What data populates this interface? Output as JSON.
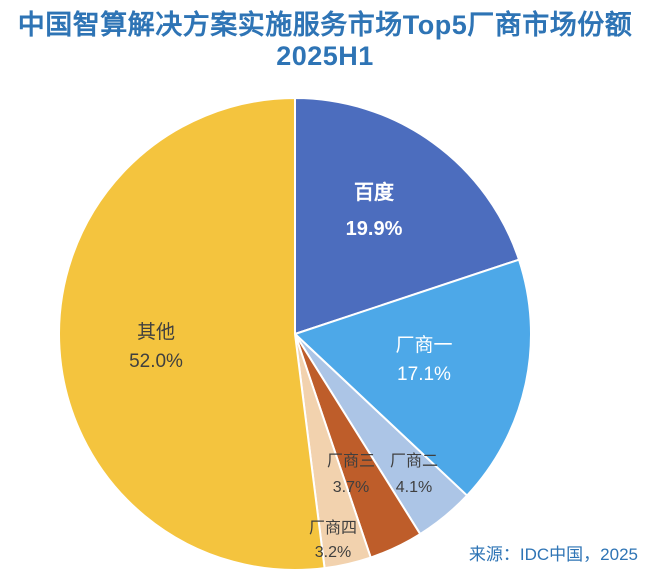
{
  "page": {
    "background": "#FFFFFF"
  },
  "header": {
    "title_line1": "中国智算解决方案实施服务市场Top5厂商市场份额",
    "title_line2": "2025H1",
    "color": "#2E74B5"
  },
  "source": {
    "text": "来源：IDC中国，2025",
    "color": "#2E74B5"
  },
  "chart_data": {
    "type": "pie",
    "title": "中国智算解决方案实施服务市场Top5厂商市场份额 2025H1",
    "start_angle_deg": 0,
    "direction": "clockwise",
    "separator_color": "#FFFFFF",
    "slices": [
      {
        "id": "baidu",
        "label": "百度",
        "value": 19.9,
        "pct": "19.9%",
        "color": "#4C6DBE",
        "label_color": "#FFFFFF"
      },
      {
        "id": "vendor1",
        "label": "厂商一",
        "value": 17.1,
        "pct": "17.1%",
        "color": "#4DA8E8",
        "label_color": "#FFFFFF"
      },
      {
        "id": "vendor2",
        "label": "厂商二",
        "value": 4.1,
        "pct": "4.1%",
        "color": "#ACC5E6",
        "label_color": "#3F3F3F"
      },
      {
        "id": "vendor3",
        "label": "厂商三",
        "value": 3.7,
        "pct": "3.7%",
        "color": "#BE5D2A",
        "label_color": "#3F3F3F"
      },
      {
        "id": "vendor4",
        "label": "厂商四",
        "value": 3.2,
        "pct": "3.2%",
        "color": "#F2D2AE",
        "label_color": "#3F3F3F"
      },
      {
        "id": "others",
        "label": "其他",
        "value": 52.0,
        "pct": "52.0%",
        "color": "#F4C43E",
        "label_color": "#3F3F3F"
      }
    ],
    "source": "来源：IDC中国，2025"
  }
}
